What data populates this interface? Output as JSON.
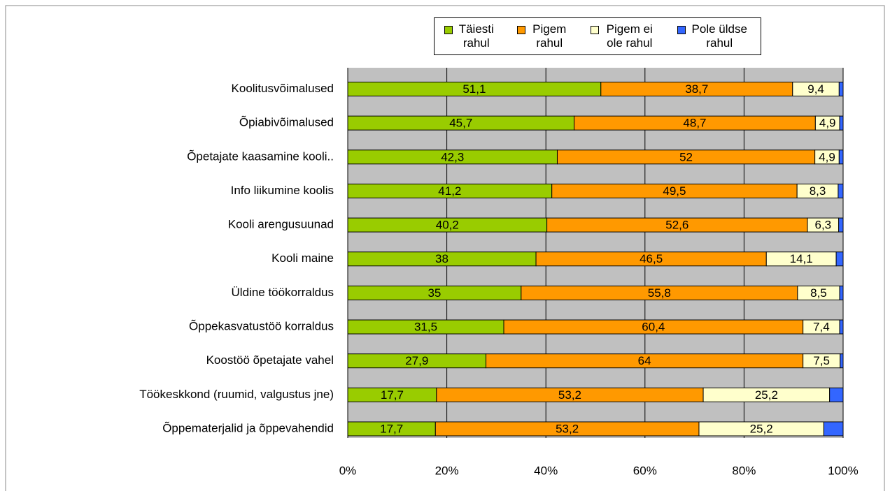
{
  "chart_data": {
    "type": "stacked_bar_horizontal_percent",
    "categories": [
      "Koolitusvõimalused",
      "Õpiabivõimalused",
      "Õpetajate kaasamine kooli..",
      "Info liikumine koolis",
      "Kooli arengusuunad",
      "Kooli maine",
      "Üldine töökorraldus",
      "Õppekasvatustöö korraldus",
      "Koostöö õpetajate vahel",
      "Töökeskkond (ruumid, valgustus jne)",
      "Õppematerjalid ja õppevahendid"
    ],
    "series": [
      {
        "name": "Täiesti rahul",
        "color": "#99cc00",
        "values": [
          51.1,
          45.7,
          42.3,
          41.2,
          40.2,
          38,
          35,
          31.5,
          27.9,
          17.7,
          17.7
        ],
        "value_labels": [
          "51,1",
          "45,7",
          "42,3",
          "41,2",
          "40,2",
          "38",
          "35",
          "31,5",
          "27,9",
          "17,7",
          "17,7"
        ]
      },
      {
        "name": "Pigem rahul",
        "color": "#ff9900",
        "values": [
          38.7,
          48.7,
          52,
          49.5,
          52.6,
          46.5,
          55.8,
          60.4,
          64,
          53.2,
          53.2
        ],
        "value_labels": [
          "38,7",
          "48,7",
          "52",
          "49,5",
          "52,6",
          "46,5",
          "55,8",
          "60,4",
          "64",
          "53,2",
          "53,2"
        ]
      },
      {
        "name": "Pigem ei ole rahul",
        "color": "#ffffcc",
        "values": [
          9.4,
          4.9,
          4.9,
          8.3,
          6.3,
          14.1,
          8.5,
          7.4,
          7.5,
          25.2,
          25.2
        ],
        "value_labels": [
          "9,4",
          "4,9",
          "4,9",
          "8,3",
          "6,3",
          "14,1",
          "8,5",
          "7,4",
          "7,5",
          "25,2",
          "25,2"
        ]
      },
      {
        "name": "Pole üldse rahul",
        "color": "#3366ff",
        "values": [
          0.8,
          0.7,
          0.8,
          1.0,
          0.9,
          1.4,
          0.7,
          0.7,
          0.6,
          2.7,
          3.9
        ]
      }
    ],
    "xlim": [
      0,
      100
    ],
    "xticks": [
      {
        "value": 0,
        "label": "0%"
      },
      {
        "value": 20,
        "label": "20%"
      },
      {
        "value": 40,
        "label": "40%"
      },
      {
        "value": 60,
        "label": "60%"
      },
      {
        "value": 80,
        "label": "80%"
      },
      {
        "value": 100,
        "label": "100%"
      }
    ],
    "grid": true,
    "legend": "top"
  }
}
